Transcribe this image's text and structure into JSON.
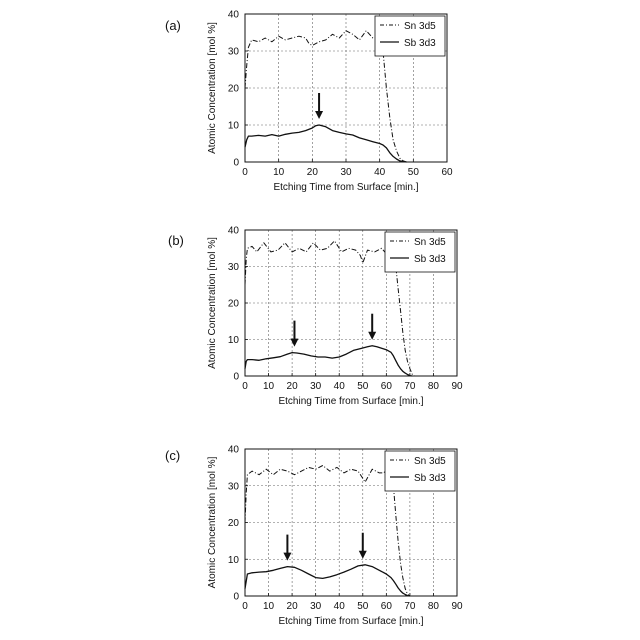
{
  "chart_data": [
    {
      "panel_label": "(a)",
      "type": "line",
      "xlabel": "Etching Time from Surface [min.]",
      "ylabel": "Atomic Concentration [mol %]",
      "xlim": [
        0,
        60
      ],
      "ylim": [
        0,
        40
      ],
      "xticks": [
        "0",
        "10",
        "20",
        "30",
        "40",
        "50",
        "60"
      ],
      "yticks": [
        "0",
        "10",
        "20",
        "30",
        "40"
      ],
      "grid": "dashed",
      "legend_position": "top-right",
      "series": [
        {
          "name": "Sn 3d5",
          "style": "dash-dot",
          "x": [
            0,
            0.5,
            1,
            2,
            4,
            6,
            8,
            10,
            12,
            14,
            16,
            18,
            19,
            20,
            22,
            24,
            26,
            28,
            30,
            32,
            34,
            36,
            38,
            40,
            41,
            42,
            43,
            44,
            45,
            46,
            47,
            48
          ],
          "y": [
            20,
            26,
            31,
            33,
            32.5,
            33.5,
            32.5,
            34,
            33,
            33.5,
            34,
            33.5,
            32,
            31.5,
            32.5,
            33,
            34.5,
            33.5,
            35.5,
            34.5,
            33,
            35.5,
            33.5,
            33.5,
            30,
            20,
            12,
            6,
            3,
            1,
            0.3,
            0
          ]
        },
        {
          "name": "Sb 3d3",
          "style": "solid",
          "x": [
            0,
            0.5,
            1,
            2,
            4,
            6,
            8,
            10,
            12,
            14,
            16,
            18,
            20,
            21,
            22,
            24,
            26,
            28,
            30,
            32,
            34,
            36,
            38,
            40,
            41,
            42,
            43,
            44,
            45,
            46,
            47,
            48
          ],
          "y": [
            4,
            6,
            7,
            7,
            7.2,
            7,
            7.4,
            7,
            7.5,
            7.8,
            8,
            8.5,
            9.2,
            9.8,
            10,
            9.5,
            8.5,
            8,
            7.6,
            7.3,
            6.5,
            6,
            5.5,
            5,
            4.6,
            3.8,
            2.5,
            1.5,
            0.8,
            0.3,
            0.1,
            0
          ]
        }
      ],
      "annotations": [
        {
          "type": "arrow",
          "x": 22,
          "y": 10
        }
      ]
    },
    {
      "panel_label": "(b)",
      "type": "line",
      "xlabel": "Etching Time from Surface [min.]",
      "ylabel": "Atomic Concentration [mol %]",
      "xlim": [
        0,
        90
      ],
      "ylim": [
        0,
        40
      ],
      "xticks": [
        "0",
        "10",
        "20",
        "30",
        "40",
        "50",
        "60",
        "70",
        "80",
        "90"
      ],
      "yticks": [
        "0",
        "10",
        "20",
        "30",
        "40"
      ],
      "grid": "dashed",
      "legend_position": "top-right",
      "series": [
        {
          "name": "Sn 3d5",
          "style": "dash-dot",
          "x": [
            0,
            0.5,
            1,
            3,
            5,
            8,
            11,
            14,
            17,
            20,
            23,
            26,
            29,
            32,
            35,
            38,
            41,
            44,
            47,
            49,
            50,
            52,
            55,
            58,
            60,
            62,
            63,
            64,
            65,
            66,
            67,
            68,
            69,
            70,
            71,
            72
          ],
          "y": [
            25,
            32,
            35,
            35.5,
            34,
            36.5,
            34,
            34.5,
            36.5,
            34,
            35,
            34,
            36.5,
            34.5,
            35,
            37,
            34,
            35,
            34.5,
            33,
            31,
            34.5,
            34,
            35,
            33.5,
            34.5,
            33,
            30,
            24,
            18,
            12,
            7,
            4,
            2,
            0.5,
            0
          ]
        },
        {
          "name": "Sb 3d3",
          "style": "solid",
          "x": [
            0,
            0.5,
            1,
            3,
            6,
            9,
            12,
            15,
            18,
            20,
            22,
            25,
            28,
            31,
            34,
            37,
            40,
            43,
            46,
            49,
            52,
            54,
            56,
            58,
            60,
            62,
            63,
            64,
            65,
            66,
            67,
            68,
            69,
            70,
            71
          ],
          "y": [
            2,
            4,
            4.5,
            4.5,
            4.3,
            4.7,
            5,
            5.3,
            6,
            6.4,
            6.3,
            6,
            5.5,
            5.2,
            5.2,
            4.9,
            5.2,
            6,
            7,
            7.5,
            8,
            8.3,
            8,
            7.6,
            7.2,
            6.5,
            5.5,
            4.2,
            3,
            2,
            1.3,
            0.8,
            0.4,
            0.1,
            0
          ]
        }
      ],
      "annotations": [
        {
          "type": "arrow",
          "x": 21,
          "y": 6.4
        },
        {
          "type": "arrow",
          "x": 54,
          "y": 8.3
        }
      ]
    },
    {
      "panel_label": "(c)",
      "type": "line",
      "xlabel": "Etching Time from Surface [min.]",
      "ylabel": "Atomic Concentration [mol %]",
      "xlim": [
        0,
        90
      ],
      "ylim": [
        0,
        40
      ],
      "xticks": [
        "0",
        "10",
        "20",
        "30",
        "40",
        "50",
        "60",
        "70",
        "80",
        "90"
      ],
      "yticks": [
        "0",
        "10",
        "20",
        "30",
        "40"
      ],
      "grid": "dashed",
      "legend_position": "top-right",
      "series": [
        {
          "name": "Sn 3d5",
          "style": "dash-dot",
          "x": [
            0,
            0.5,
            1,
            3,
            6,
            9,
            12,
            15,
            18,
            21,
            24,
            27,
            30,
            33,
            36,
            39,
            42,
            45,
            48,
            50,
            51,
            54,
            57,
            59,
            61,
            62,
            63,
            64,
            65,
            66,
            67,
            68,
            69,
            70
          ],
          "y": [
            20,
            28,
            33,
            34,
            33,
            34.5,
            33,
            34.5,
            34,
            33,
            34,
            35,
            34.5,
            35.5,
            34,
            35,
            33.5,
            34.5,
            34,
            32,
            31,
            34.5,
            33.5,
            33.5,
            36,
            34.5,
            30,
            22,
            15,
            9,
            5,
            2,
            0.5,
            0
          ]
        },
        {
          "name": "Sb 3d3",
          "style": "solid",
          "x": [
            0,
            0.5,
            1,
            3,
            6,
            9,
            12,
            15,
            18,
            21,
            24,
            27,
            30,
            33,
            36,
            39,
            42,
            45,
            48,
            51,
            54,
            57,
            60,
            62,
            63,
            64,
            65,
            66,
            67,
            68,
            69,
            70
          ],
          "y": [
            2,
            4,
            6,
            6.3,
            6.5,
            6.6,
            7,
            7.5,
            8,
            7.8,
            7,
            6,
            5,
            4.8,
            5.2,
            5.8,
            6.5,
            7.3,
            8.2,
            8.5,
            8,
            7,
            6,
            5,
            4.2,
            3.2,
            2.2,
            1.4,
            0.8,
            0.4,
            0.1,
            0
          ]
        }
      ],
      "annotations": [
        {
          "type": "arrow",
          "x": 18,
          "y": 8
        },
        {
          "type": "arrow",
          "x": 50,
          "y": 8.5
        }
      ]
    }
  ]
}
